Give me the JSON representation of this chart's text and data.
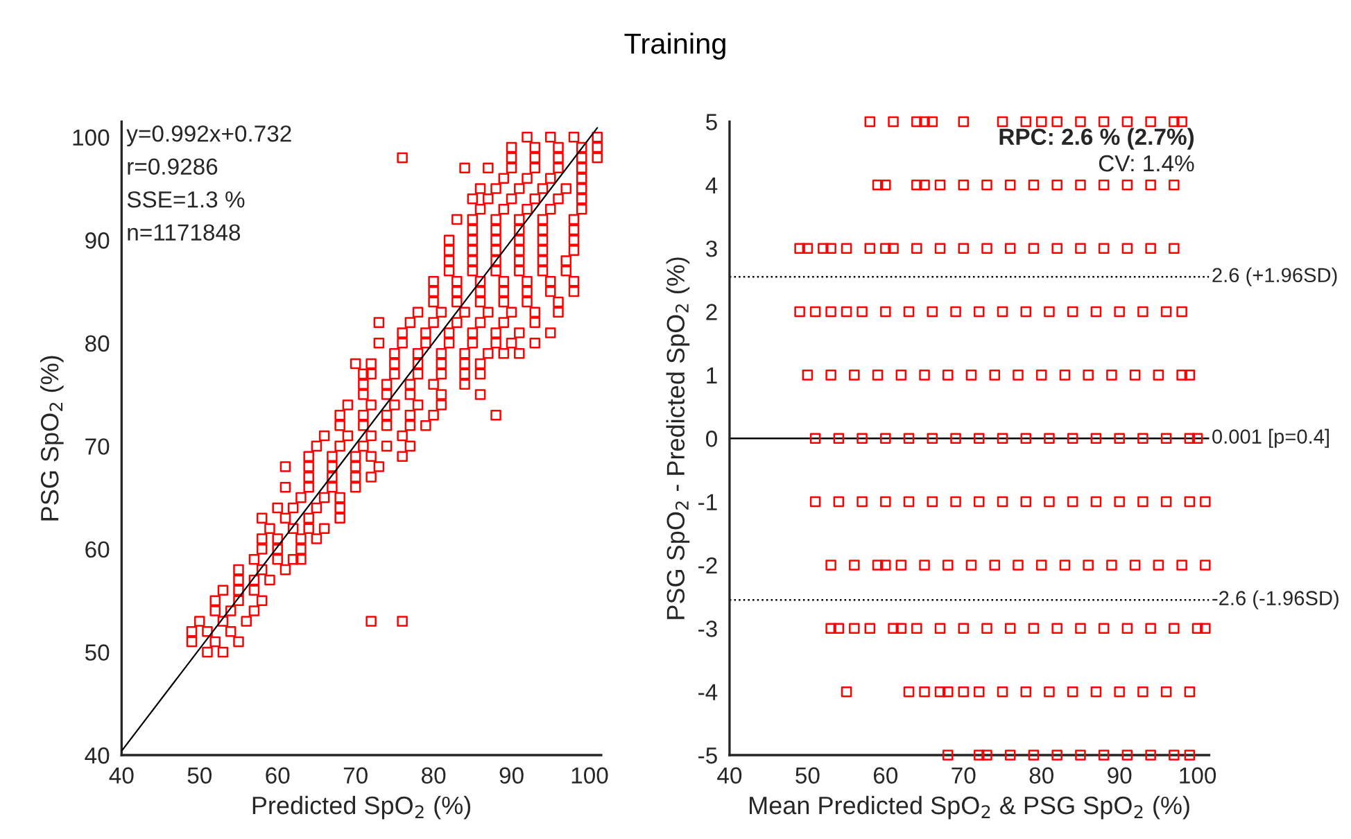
{
  "chart_data": [
    {
      "type": "other",
      "title": "Training"
    },
    {
      "type": "scatter",
      "xlabel": "Predicted SpO$_{2}$ (%)",
      "ylabel": "PSG SpO$_{2}$ (%)",
      "xlim": [
        40,
        101.5
      ],
      "ylim": [
        40,
        101.5
      ],
      "xticks": [
        40,
        50,
        60,
        70,
        80,
        90,
        100
      ],
      "yticks": [
        40,
        50,
        60,
        70,
        80,
        90,
        100
      ],
      "grid": false,
      "marker": "square",
      "annotations": [
        "y=0.992x+0.732",
        "r=0.9286",
        "SSE=1.3 %",
        "n=1171848"
      ],
      "series": [
        {
          "color": "#ff0000",
          "x": [
            92,
            95,
            98,
            101
          ],
          "values": [
            100,
            100,
            100,
            100
          ]
        },
        {
          "color": "#ff0000",
          "x": [
            90,
            93,
            96,
            99,
            101
          ],
          "values": [
            99,
            99,
            99,
            99,
            99
          ]
        },
        {
          "color": "#ff0000",
          "x": [
            76,
            90,
            93,
            96,
            99,
            101
          ],
          "values": [
            98,
            98,
            98,
            98,
            98,
            98
          ]
        },
        {
          "color": "#ff0000",
          "x": [
            84,
            87,
            90,
            93,
            96,
            99
          ],
          "values": [
            97,
            97,
            97,
            97,
            97,
            97
          ]
        },
        {
          "color": "#ff0000",
          "x": [
            89,
            92,
            95,
            99
          ],
          "values": [
            96,
            96,
            96,
            96
          ]
        },
        {
          "color": "#ff0000",
          "x": [
            86,
            88,
            91,
            94,
            97,
            99
          ],
          "values": [
            95,
            95,
            95,
            95,
            95,
            95
          ]
        },
        {
          "color": "#ff0000",
          "x": [
            85,
            87,
            90,
            93,
            96,
            99
          ],
          "values": [
            94,
            94,
            94,
            94,
            94,
            94
          ]
        },
        {
          "color": "#ff0000",
          "x": [
            86,
            89,
            92,
            95,
            99
          ],
          "values": [
            93,
            93,
            93,
            93,
            93
          ]
        },
        {
          "color": "#ff0000",
          "x": [
            83,
            85,
            88,
            91,
            94,
            98
          ],
          "values": [
            92,
            92,
            92,
            92,
            92,
            92
          ]
        },
        {
          "color": "#ff0000",
          "x": [
            85,
            88,
            91,
            94,
            98
          ],
          "values": [
            91,
            91,
            91,
            91,
            91
          ]
        },
        {
          "color": "#ff0000",
          "x": [
            82,
            85,
            88,
            91,
            94,
            98
          ],
          "values": [
            90,
            90,
            90,
            90,
            90,
            90
          ]
        },
        {
          "color": "#ff0000",
          "x": [
            82,
            85,
            88,
            91,
            94,
            98
          ],
          "values": [
            89,
            89,
            89,
            89,
            89,
            89
          ]
        },
        {
          "color": "#ff0000",
          "x": [
            82,
            85,
            88,
            91,
            94,
            97
          ],
          "values": [
            88,
            88,
            88,
            88,
            88,
            88
          ]
        },
        {
          "color": "#ff0000",
          "x": [
            82,
            85,
            88,
            91,
            94,
            97
          ],
          "values": [
            87,
            87,
            87,
            87,
            87,
            87
          ]
        },
        {
          "color": "#ff0000",
          "x": [
            80,
            83,
            86,
            89,
            92,
            95,
            98
          ],
          "values": [
            86,
            86,
            86,
            86,
            86,
            86,
            86
          ]
        },
        {
          "color": "#ff0000",
          "x": [
            80,
            83,
            86,
            89,
            92,
            95,
            98
          ],
          "values": [
            85,
            85,
            85,
            85,
            85,
            85,
            85
          ]
        },
        {
          "color": "#ff0000",
          "x": [
            80,
            83,
            86,
            89,
            92,
            96
          ],
          "values": [
            84,
            84,
            84,
            84,
            84,
            84
          ]
        },
        {
          "color": "#ff0000",
          "x": [
            78,
            81,
            84,
            87,
            90,
            93,
            96
          ],
          "values": [
            83,
            83,
            83,
            83,
            83,
            83,
            83
          ]
        },
        {
          "color": "#ff0000",
          "x": [
            73,
            77,
            80,
            83,
            86,
            89,
            93
          ],
          "values": [
            82,
            82,
            82,
            82,
            82,
            82,
            82
          ]
        },
        {
          "color": "#ff0000",
          "x": [
            76,
            79,
            82,
            85,
            88,
            91,
            95
          ],
          "values": [
            81,
            81,
            81,
            81,
            81,
            81,
            81
          ]
        },
        {
          "color": "#ff0000",
          "x": [
            73,
            76,
            79,
            82,
            85,
            88,
            90,
            93
          ],
          "values": [
            80,
            80,
            80,
            80,
            80,
            80,
            80,
            80
          ]
        },
        {
          "color": "#ff0000",
          "x": [
            75,
            78,
            81,
            84,
            87,
            89,
            91
          ],
          "values": [
            79,
            79,
            79,
            79,
            79,
            79,
            79
          ]
        },
        {
          "color": "#ff0000",
          "x": [
            70,
            72,
            75,
            78,
            81,
            84,
            86
          ],
          "values": [
            78,
            78,
            78,
            78,
            78,
            78,
            78
          ]
        },
        {
          "color": "#ff0000",
          "x": [
            71,
            72,
            75,
            78,
            81,
            84,
            86
          ],
          "values": [
            77,
            77,
            77,
            77,
            77,
            77,
            77
          ]
        },
        {
          "color": "#ff0000",
          "x": [
            71,
            74,
            77,
            80,
            84
          ],
          "values": [
            76,
            76,
            76,
            76,
            76
          ]
        },
        {
          "color": "#ff0000",
          "x": [
            71,
            74,
            77,
            81,
            86
          ],
          "values": [
            75,
            75,
            75,
            75,
            75
          ]
        },
        {
          "color": "#ff0000",
          "x": [
            69,
            72,
            75,
            78,
            81
          ],
          "values": [
            74,
            74,
            74,
            74,
            74
          ]
        },
        {
          "color": "#ff0000",
          "x": [
            68,
            71,
            74,
            77,
            80,
            88
          ],
          "values": [
            73,
            73,
            73,
            73,
            73,
            73
          ]
        },
        {
          "color": "#ff0000",
          "x": [
            68,
            71,
            74,
            77,
            79
          ],
          "values": [
            72,
            72,
            72,
            72,
            72
          ]
        },
        {
          "color": "#ff0000",
          "x": [
            66,
            69,
            72,
            76
          ],
          "values": [
            71,
            71,
            71,
            71
          ]
        },
        {
          "color": "#ff0000",
          "x": [
            65,
            68,
            71,
            74,
            77
          ],
          "values": [
            70,
            70,
            70,
            70,
            70
          ]
        },
        {
          "color": "#ff0000",
          "x": [
            64,
            67,
            70,
            72,
            76
          ],
          "values": [
            69,
            69,
            69,
            69,
            69
          ]
        },
        {
          "color": "#ff0000",
          "x": [
            61,
            64,
            67,
            70,
            73
          ],
          "values": [
            68,
            68,
            68,
            68,
            68
          ]
        },
        {
          "color": "#ff0000",
          "x": [
            64,
            67,
            70,
            72
          ],
          "values": [
            67,
            67,
            67,
            67
          ]
        },
        {
          "color": "#ff0000",
          "x": [
            61,
            64,
            67,
            70
          ],
          "values": [
            66,
            66,
            66,
            66
          ]
        },
        {
          "color": "#ff0000",
          "x": [
            63,
            66,
            68
          ],
          "values": [
            65,
            65,
            65
          ]
        },
        {
          "color": "#ff0000",
          "x": [
            60,
            62,
            65,
            68
          ],
          "values": [
            64,
            64,
            64,
            64
          ]
        },
        {
          "color": "#ff0000",
          "x": [
            58,
            61,
            64,
            68
          ],
          "values": [
            63,
            63,
            63,
            63
          ]
        },
        {
          "color": "#ff0000",
          "x": [
            59,
            62,
            64,
            66
          ],
          "values": [
            62,
            62,
            62,
            62
          ]
        },
        {
          "color": "#ff0000",
          "x": [
            58,
            60,
            63,
            65
          ],
          "values": [
            61,
            61,
            61,
            61
          ]
        },
        {
          "color": "#ff0000",
          "x": [
            58,
            60,
            63
          ],
          "values": [
            60,
            60,
            60
          ]
        },
        {
          "color": "#ff0000",
          "x": [
            57,
            60,
            62,
            63
          ],
          "values": [
            59,
            59,
            59,
            59
          ]
        },
        {
          "color": "#ff0000",
          "x": [
            55,
            58,
            61
          ],
          "values": [
            58,
            58,
            58
          ]
        },
        {
          "color": "#ff0000",
          "x": [
            55,
            57,
            59
          ],
          "values": [
            57,
            57,
            57
          ]
        },
        {
          "color": "#ff0000",
          "x": [
            53,
            55,
            57
          ],
          "values": [
            56,
            56,
            56
          ]
        },
        {
          "color": "#ff0000",
          "x": [
            52,
            55,
            58
          ],
          "values": [
            55,
            55,
            55
          ]
        },
        {
          "color": "#ff0000",
          "x": [
            52,
            54,
            57
          ],
          "values": [
            54,
            54,
            54
          ]
        },
        {
          "color": "#ff0000",
          "x": [
            50,
            53,
            56,
            72,
            76
          ],
          "values": [
            53,
            53,
            53,
            53,
            53
          ]
        },
        {
          "color": "#ff0000",
          "x": [
            49,
            51,
            54
          ],
          "values": [
            52,
            52,
            52
          ]
        },
        {
          "color": "#ff0000",
          "x": [
            49,
            52,
            55
          ],
          "values": [
            51,
            51,
            51
          ]
        },
        {
          "color": "#ff0000",
          "x": [
            51,
            53
          ],
          "values": [
            50,
            50
          ]
        },
        {
          "type": "line",
          "color": "#000000",
          "marker": "none",
          "x": [
            40,
            101
          ],
          "values": [
            40.4,
            100.9
          ]
        }
      ]
    },
    {
      "type": "scatter",
      "xlabel": "Mean Predicted SpO$_{2}$ & PSG SpO$_{2}$ (%)",
      "ylabel": "PSG SpO$_{2}$ - Predicted SpO$_{2}$ (%)",
      "xlim": [
        40,
        101.5
      ],
      "ylim": [
        -5,
        5
      ],
      "xticks": [
        40,
        50,
        60,
        70,
        80,
        90,
        100
      ],
      "yticks": [
        -5,
        -4,
        -3,
        -2,
        -1,
        0,
        1,
        2,
        3,
        4,
        5
      ],
      "grid": false,
      "marker": "square",
      "annotations": [
        "RPC: 2.6 % (2.7%)",
        "CV: 1.4%"
      ],
      "ref_lines": [
        {
          "axis": "y",
          "value": 2.55,
          "label": "2.6 (+1.96SD)",
          "color": "#000000",
          "line_style": "dotted"
        },
        {
          "axis": "y",
          "value": 0.001,
          "label": "0.001 [p=0.4]",
          "color": "#000000",
          "line_style": "solid"
        },
        {
          "axis": "y",
          "value": -2.55,
          "label": "-2.6 (-1.96SD)",
          "color": "#000000",
          "line_style": "dotted"
        }
      ],
      "series": [
        {
          "color": "#ff0000",
          "x": [
            58,
            61,
            64,
            65,
            66,
            70,
            75,
            78,
            80,
            82,
            85,
            88,
            91,
            94,
            97,
            98
          ],
          "values": [
            5,
            5,
            5,
            5,
            5,
            5,
            5,
            5,
            5,
            5,
            5,
            5,
            5,
            5,
            5,
            5
          ]
        },
        {
          "color": "#ff0000",
          "x": [
            59,
            60,
            64,
            65,
            67,
            70,
            73,
            76,
            79,
            82,
            85,
            88,
            91,
            94,
            97
          ],
          "values": [
            4,
            4,
            4,
            4,
            4,
            4,
            4,
            4,
            4,
            4,
            4,
            4,
            4,
            4,
            4
          ]
        },
        {
          "color": "#ff0000",
          "x": [
            49,
            50,
            52,
            53,
            55,
            58,
            60,
            61,
            64,
            67,
            70,
            73,
            76,
            79,
            82,
            85,
            88,
            91,
            94,
            97
          ],
          "values": [
            3,
            3,
            3,
            3,
            3,
            3,
            3,
            3,
            3,
            3,
            3,
            3,
            3,
            3,
            3,
            3,
            3,
            3,
            3,
            3
          ]
        },
        {
          "color": "#ff0000",
          "x": [
            49,
            51,
            53,
            55,
            57,
            60,
            63,
            66,
            69,
            72,
            75,
            78,
            81,
            84,
            87,
            90,
            93,
            96,
            98
          ],
          "values": [
            2,
            2,
            2,
            2,
            2,
            2,
            2,
            2,
            2,
            2,
            2,
            2,
            2,
            2,
            2,
            2,
            2,
            2,
            2
          ]
        },
        {
          "color": "#ff0000",
          "x": [
            50,
            53,
            56,
            59,
            62,
            65,
            68,
            71,
            74,
            77,
            80,
            83,
            86,
            89,
            92,
            95,
            98,
            99
          ],
          "values": [
            1,
            1,
            1,
            1,
            1,
            1,
            1,
            1,
            1,
            1,
            1,
            1,
            1,
            1,
            1,
            1,
            1,
            1
          ]
        },
        {
          "color": "#ff0000",
          "x": [
            51,
            54,
            57,
            60,
            63,
            66,
            69,
            72,
            75,
            78,
            81,
            84,
            87,
            90,
            93,
            96,
            99,
            100
          ],
          "values": [
            0,
            0,
            0,
            0,
            0,
            0,
            0,
            0,
            0,
            0,
            0,
            0,
            0,
            0,
            0,
            0,
            0,
            0
          ]
        },
        {
          "color": "#ff0000",
          "x": [
            51,
            54,
            57,
            60,
            63,
            66,
            69,
            72,
            75,
            78,
            81,
            84,
            87,
            90,
            93,
            96,
            99,
            101
          ],
          "values": [
            -1,
            -1,
            -1,
            -1,
            -1,
            -1,
            -1,
            -1,
            -1,
            -1,
            -1,
            -1,
            -1,
            -1,
            -1,
            -1,
            -1,
            -1
          ]
        },
        {
          "color": "#ff0000",
          "x": [
            53,
            56,
            59,
            60,
            62,
            65,
            68,
            71,
            74,
            77,
            80,
            83,
            86,
            89,
            92,
            95,
            98,
            101
          ],
          "values": [
            -2,
            -2,
            -2,
            -2,
            -2,
            -2,
            -2,
            -2,
            -2,
            -2,
            -2,
            -2,
            -2,
            -2,
            -2,
            -2,
            -2,
            -2
          ]
        },
        {
          "color": "#ff0000",
          "x": [
            53,
            54,
            56,
            58,
            61,
            62,
            64,
            67,
            70,
            73,
            76,
            79,
            82,
            85,
            88,
            91,
            94,
            97,
            100,
            101
          ],
          "values": [
            -3,
            -3,
            -3,
            -3,
            -3,
            -3,
            -3,
            -3,
            -3,
            -3,
            -3,
            -3,
            -3,
            -3,
            -3,
            -3,
            -3,
            -3,
            -3,
            -3
          ]
        },
        {
          "color": "#ff0000",
          "x": [
            55,
            63,
            65,
            67,
            68,
            70,
            72,
            75,
            78,
            81,
            84,
            87,
            90,
            93,
            96,
            99
          ],
          "values": [
            -4,
            -4,
            -4,
            -4,
            -4,
            -4,
            -4,
            -4,
            -4,
            -4,
            -4,
            -4,
            -4,
            -4,
            -4,
            -4
          ]
        },
        {
          "color": "#ff0000",
          "x": [
            68,
            72,
            73,
            76,
            79,
            82,
            85,
            88,
            91,
            94,
            97,
            99
          ],
          "values": [
            -5,
            -5,
            -5,
            -5,
            -5,
            -5,
            -5,
            -5,
            -5,
            -5,
            -5,
            -5
          ]
        }
      ]
    }
  ]
}
